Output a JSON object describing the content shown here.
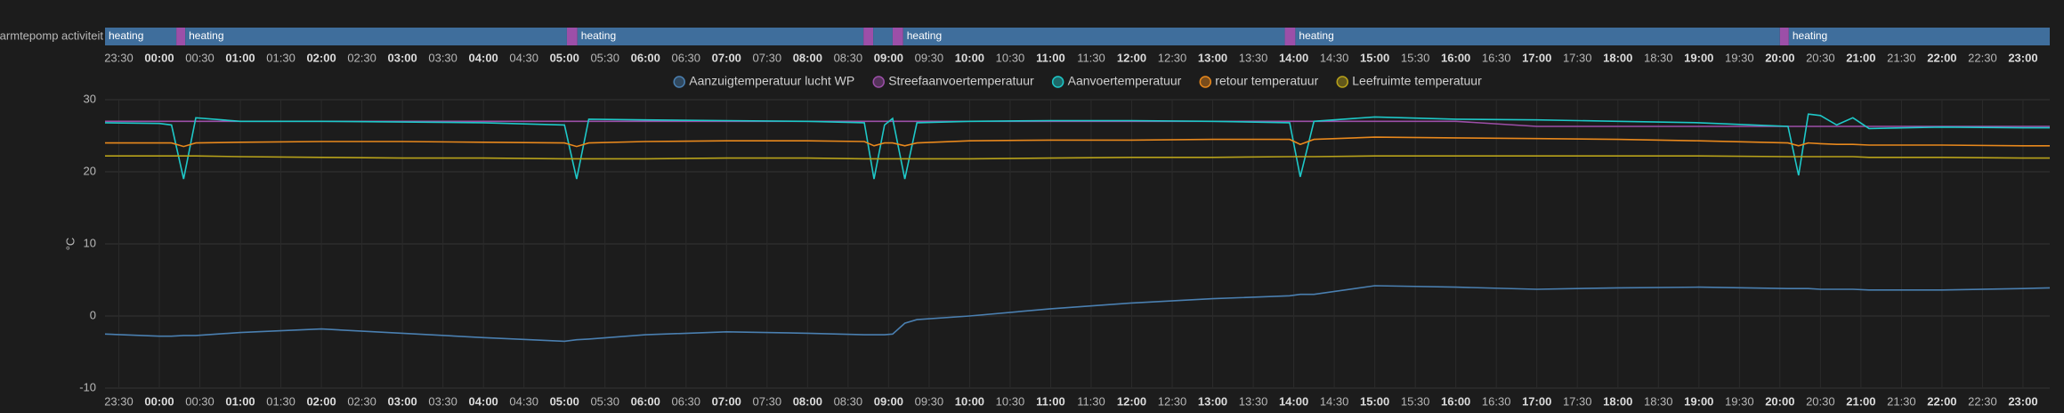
{
  "chart_data": [
    {
      "type": "timeline",
      "label": "Warmtepomp activiteit",
      "segments": [
        {
          "start": -0.67,
          "end": 0.21,
          "label": "heating",
          "color": "#3f6e9c"
        },
        {
          "start": 0.21,
          "end": 0.32,
          "color": "#9c4fa8"
        },
        {
          "start": 0.32,
          "end": 5.03,
          "label": "heating",
          "color": "#3f6e9c"
        },
        {
          "start": 5.03,
          "end": 5.16,
          "color": "#9c4fa8"
        },
        {
          "start": 5.16,
          "end": 8.69,
          "label": "heating",
          "color": "#3f6e9c"
        },
        {
          "start": 8.69,
          "end": 8.81,
          "color": "#9c4fa8"
        },
        {
          "start": 8.81,
          "end": 9.05,
          "color": "#3f6e9c"
        },
        {
          "start": 9.05,
          "end": 9.18,
          "color": "#9c4fa8"
        },
        {
          "start": 9.18,
          "end": 13.89,
          "label": "heating",
          "color": "#3f6e9c"
        },
        {
          "start": 13.89,
          "end": 14.02,
          "color": "#9c4fa8"
        },
        {
          "start": 14.02,
          "end": 20.0,
          "label": "heating",
          "color": "#3f6e9c"
        },
        {
          "start": 20.0,
          "end": 20.11,
          "color": "#9c4fa8"
        },
        {
          "start": 20.11,
          "end": 23.33,
          "label": "heating",
          "color": "#3f6e9c"
        }
      ]
    },
    {
      "type": "line",
      "y_label": "°C",
      "grid": true,
      "legend": "top",
      "xlim": [
        -0.67,
        23.33
      ],
      "ylim": [
        -10,
        30
      ],
      "yticks": [
        -10,
        0,
        10,
        20,
        30
      ],
      "xticks": [
        {
          "value": -0.5,
          "label": "23:30"
        },
        {
          "value": 0,
          "label": "00:00"
        },
        {
          "value": 0.5,
          "label": "00:30"
        },
        {
          "value": 1,
          "label": "01:00"
        },
        {
          "value": 1.5,
          "label": "01:30"
        },
        {
          "value": 2,
          "label": "02:00"
        },
        {
          "value": 2.5,
          "label": "02:30"
        },
        {
          "value": 3,
          "label": "03:00"
        },
        {
          "value": 3.5,
          "label": "03:30"
        },
        {
          "value": 4,
          "label": "04:00"
        },
        {
          "value": 4.5,
          "label": "04:30"
        },
        {
          "value": 5,
          "label": "05:00"
        },
        {
          "value": 5.5,
          "label": "05:30"
        },
        {
          "value": 6,
          "label": "06:00"
        },
        {
          "value": 6.5,
          "label": "06:30"
        },
        {
          "value": 7,
          "label": "07:00"
        },
        {
          "value": 7.5,
          "label": "07:30"
        },
        {
          "value": 8,
          "label": "08:00"
        },
        {
          "value": 8.5,
          "label": "08:30"
        },
        {
          "value": 9,
          "label": "09:00"
        },
        {
          "value": 9.5,
          "label": "09:30"
        },
        {
          "value": 10,
          "label": "10:00"
        },
        {
          "value": 10.5,
          "label": "10:30"
        },
        {
          "value": 11,
          "label": "11:00"
        },
        {
          "value": 11.5,
          "label": "11:30"
        },
        {
          "value": 12,
          "label": "12:00"
        },
        {
          "value": 12.5,
          "label": "12:30"
        },
        {
          "value": 13,
          "label": "13:00"
        },
        {
          "value": 13.5,
          "label": "13:30"
        },
        {
          "value": 14,
          "label": "14:00"
        },
        {
          "value": 14.5,
          "label": "14:30"
        },
        {
          "value": 15,
          "label": "15:00"
        },
        {
          "value": 15.5,
          "label": "15:30"
        },
        {
          "value": 16,
          "label": "16:00"
        },
        {
          "value": 16.5,
          "label": "16:30"
        },
        {
          "value": 17,
          "label": "17:00"
        },
        {
          "value": 17.5,
          "label": "17:30"
        },
        {
          "value": 18,
          "label": "18:00"
        },
        {
          "value": 18.5,
          "label": "18:30"
        },
        {
          "value": 19,
          "label": "19:00"
        },
        {
          "value": 19.5,
          "label": "19:30"
        },
        {
          "value": 20,
          "label": "20:00"
        },
        {
          "value": 20.5,
          "label": "20:30"
        },
        {
          "value": 21,
          "label": "21:00"
        },
        {
          "value": 21.5,
          "label": "21:30"
        },
        {
          "value": 22,
          "label": "22:00"
        },
        {
          "value": 22.5,
          "label": "22:30"
        },
        {
          "value": 23,
          "label": "23:00"
        }
      ],
      "x": [
        -0.67,
        0,
        0.15,
        0.3,
        0.45,
        1,
        2,
        3,
        4,
        5,
        5.15,
        5.3,
        6,
        7,
        8,
        8.7,
        8.82,
        8.95,
        9.05,
        9.2,
        9.35,
        10,
        11,
        12,
        13,
        13.95,
        14.08,
        14.25,
        15,
        16,
        17,
        18,
        19,
        20.1,
        20.23,
        20.35,
        20.5,
        20.7,
        20.9,
        21.1,
        22,
        23,
        23.33
      ],
      "series": [
        {
          "name": "Aanzuigtemperatuur lucht WP",
          "color": "#4a7fb0",
          "values": [
            -2.5,
            -2.8,
            -2.8,
            -2.7,
            -2.7,
            -2.3,
            -1.8,
            -2.4,
            -3.0,
            -3.5,
            -3.3,
            -3.2,
            -2.6,
            -2.2,
            -2.4,
            -2.6,
            -2.6,
            -2.6,
            -2.5,
            -1.0,
            -0.5,
            0,
            1.0,
            1.8,
            2.4,
            2.8,
            3.0,
            3.0,
            4.2,
            4.0,
            3.7,
            3.9,
            4.0,
            3.8,
            3.8,
            3.8,
            3.7,
            3.7,
            3.7,
            3.6,
            3.6,
            3.8,
            3.9
          ]
        },
        {
          "name": "Streefaanvoertemperatuur",
          "color": "#9c4fa8",
          "values": [
            27,
            27,
            27,
            27,
            27,
            27,
            27,
            27,
            27,
            27,
            27,
            27,
            27,
            27,
            27,
            27,
            27,
            27,
            27,
            27,
            27,
            27,
            27,
            27,
            27,
            27,
            27,
            27,
            27,
            27,
            26.3,
            26.3,
            26.3,
            26.3,
            26.3,
            26.3,
            26.3,
            26.3,
            26.3,
            26.3,
            26.3,
            26.3,
            26.3
          ]
        },
        {
          "name": "Aanvoertemperatuur",
          "color": "#1ec8c8",
          "values": [
            26.8,
            26.7,
            26.5,
            19,
            27.5,
            27,
            27,
            26.9,
            26.8,
            26.5,
            19,
            27.3,
            27.2,
            27.1,
            27,
            26.8,
            19,
            26.5,
            27.4,
            19,
            26.8,
            27,
            27.1,
            27.1,
            27,
            26.8,
            19.3,
            27,
            27.6,
            27.3,
            27.2,
            27,
            26.8,
            26.3,
            19.5,
            28,
            27.8,
            26.5,
            27.5,
            26,
            26.2,
            26.1,
            26.1
          ]
        },
        {
          "name": "retour temperatuur",
          "color": "#e8881c",
          "values": [
            24,
            24,
            24,
            23.5,
            24,
            24.1,
            24.2,
            24.2,
            24.1,
            24,
            23.5,
            24,
            24.2,
            24.3,
            24.3,
            24.2,
            23.6,
            24,
            24,
            23.6,
            24,
            24.3,
            24.4,
            24.4,
            24.5,
            24.5,
            23.8,
            24.5,
            24.8,
            24.7,
            24.6,
            24.5,
            24.3,
            24,
            23.6,
            24,
            23.9,
            23.8,
            23.8,
            23.7,
            23.7,
            23.6,
            23.6
          ]
        },
        {
          "name": "Leefruimte temperatuur",
          "color": "#b8a21a",
          "values": [
            22.2,
            22.2,
            22.2,
            22.2,
            22.2,
            22.1,
            22.0,
            21.9,
            21.9,
            21.8,
            21.8,
            21.8,
            21.8,
            21.9,
            21.9,
            21.8,
            21.8,
            21.8,
            21.8,
            21.8,
            21.8,
            21.8,
            21.9,
            22.0,
            22.0,
            22.1,
            22.1,
            22.1,
            22.2,
            22.2,
            22.2,
            22.2,
            22.2,
            22.1,
            22.1,
            22.1,
            22.1,
            22.1,
            22.1,
            22.0,
            22.0,
            21.9,
            21.9
          ]
        }
      ]
    }
  ]
}
